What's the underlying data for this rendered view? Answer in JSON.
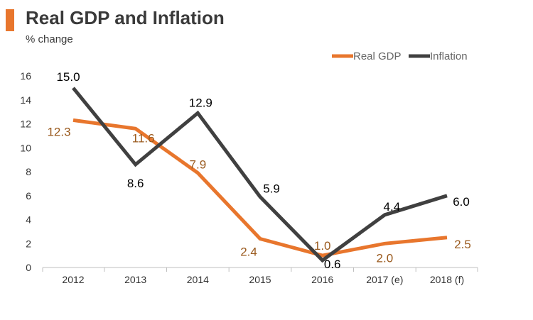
{
  "header": {
    "title": "Real GDP and Inflation",
    "subtitle": "% change"
  },
  "colors": {
    "accent": "#e8762d",
    "real_gdp": "#e8762d",
    "inflation": "#404040",
    "gdp_label": "#9a5a1e",
    "inflation_label": "#000000",
    "axis_text": "#333333",
    "legend_text": "#666666"
  },
  "chart_data": {
    "type": "line",
    "categories": [
      "2012",
      "2013",
      "2014",
      "2015",
      "2016",
      "2017 (e)",
      "2018 (f)"
    ],
    "series": [
      {
        "name": "Real GDP",
        "values": [
          12.3,
          11.6,
          7.9,
          2.4,
          1.0,
          2.0,
          2.5
        ],
        "labels": [
          "12.3",
          "11.6",
          "7.9",
          "2.4",
          "1.0",
          "2.0",
          "2.5"
        ]
      },
      {
        "name": "Inflation",
        "values": [
          15.0,
          8.6,
          12.9,
          5.9,
          0.6,
          4.4,
          6.0
        ],
        "labels": [
          "15.0",
          "8.6",
          "12.9",
          "5.9",
          "0.6",
          "4.4",
          "6.0"
        ]
      }
    ],
    "yticks": [
      "0",
      "2",
      "4",
      "6",
      "8",
      "10",
      "12",
      "14",
      "16"
    ],
    "ylim": [
      0,
      16
    ],
    "grid": false,
    "legend_position": "top-right",
    "title": "Real GDP and Inflation",
    "ylabel": "% change"
  }
}
